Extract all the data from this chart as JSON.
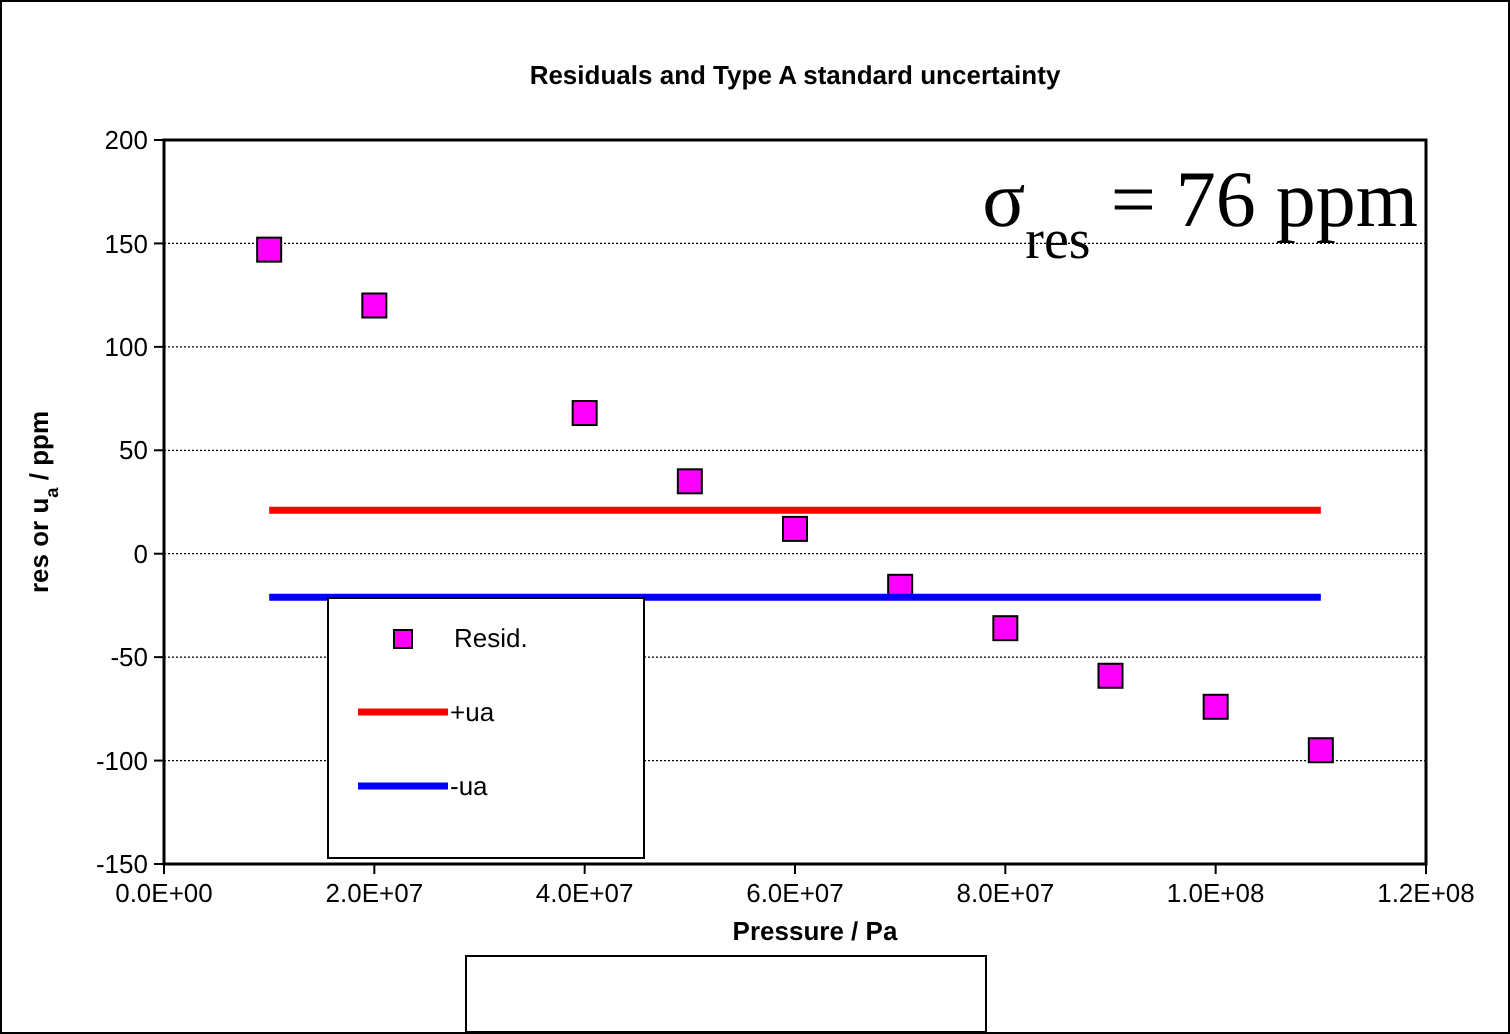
{
  "chart_data": {
    "type": "scatter",
    "title": "Residuals and Type A standard uncertainty",
    "xlabel": "Pressure / Pa",
    "ylabel": "res or u$_{a}$ / ppm",
    "annotations": [
      "σ$_{res}$ = 76 ppm"
    ],
    "xlim": [
      0,
      120000000
    ],
    "xticks": [
      {
        "value": 0,
        "label": "0.0E+00"
      },
      {
        "value": 20000000,
        "label": "2.0E+07"
      },
      {
        "value": 40000000,
        "label": "4.0E+07"
      },
      {
        "value": 60000000,
        "label": "6.0E+07"
      },
      {
        "value": 80000000,
        "label": "8.0E+07"
      },
      {
        "value": 100000000,
        "label": "1.0E+08"
      },
      {
        "value": 120000000,
        "label": "1.2E+08"
      }
    ],
    "ylim": [
      -150,
      200
    ],
    "yticks": [
      -150,
      -100,
      -50,
      0,
      50,
      100,
      150,
      200
    ],
    "grid": "y",
    "legend": "bottom left",
    "series": [
      {
        "name": "Resid.",
        "marker": "square",
        "color": "#ff00ff",
        "x": [
          10000000,
          20000000,
          40000000,
          50000000,
          60000000,
          70000000,
          80000000,
          90000000,
          100000000,
          110000000
        ],
        "values": [
          147,
          120,
          68,
          35,
          12,
          -16,
          -36,
          -59,
          -74,
          -95
        ]
      },
      {
        "name": "+ua",
        "type": "line",
        "marker": "none",
        "color": "#ff0000",
        "x": [
          10000000,
          110000000
        ],
        "values": [
          21,
          21
        ]
      },
      {
        "name": "-ua",
        "type": "line",
        "marker": "none",
        "color": "#0000ff",
        "x": [
          10000000,
          110000000
        ],
        "values": [
          -21,
          -21
        ]
      }
    ]
  }
}
